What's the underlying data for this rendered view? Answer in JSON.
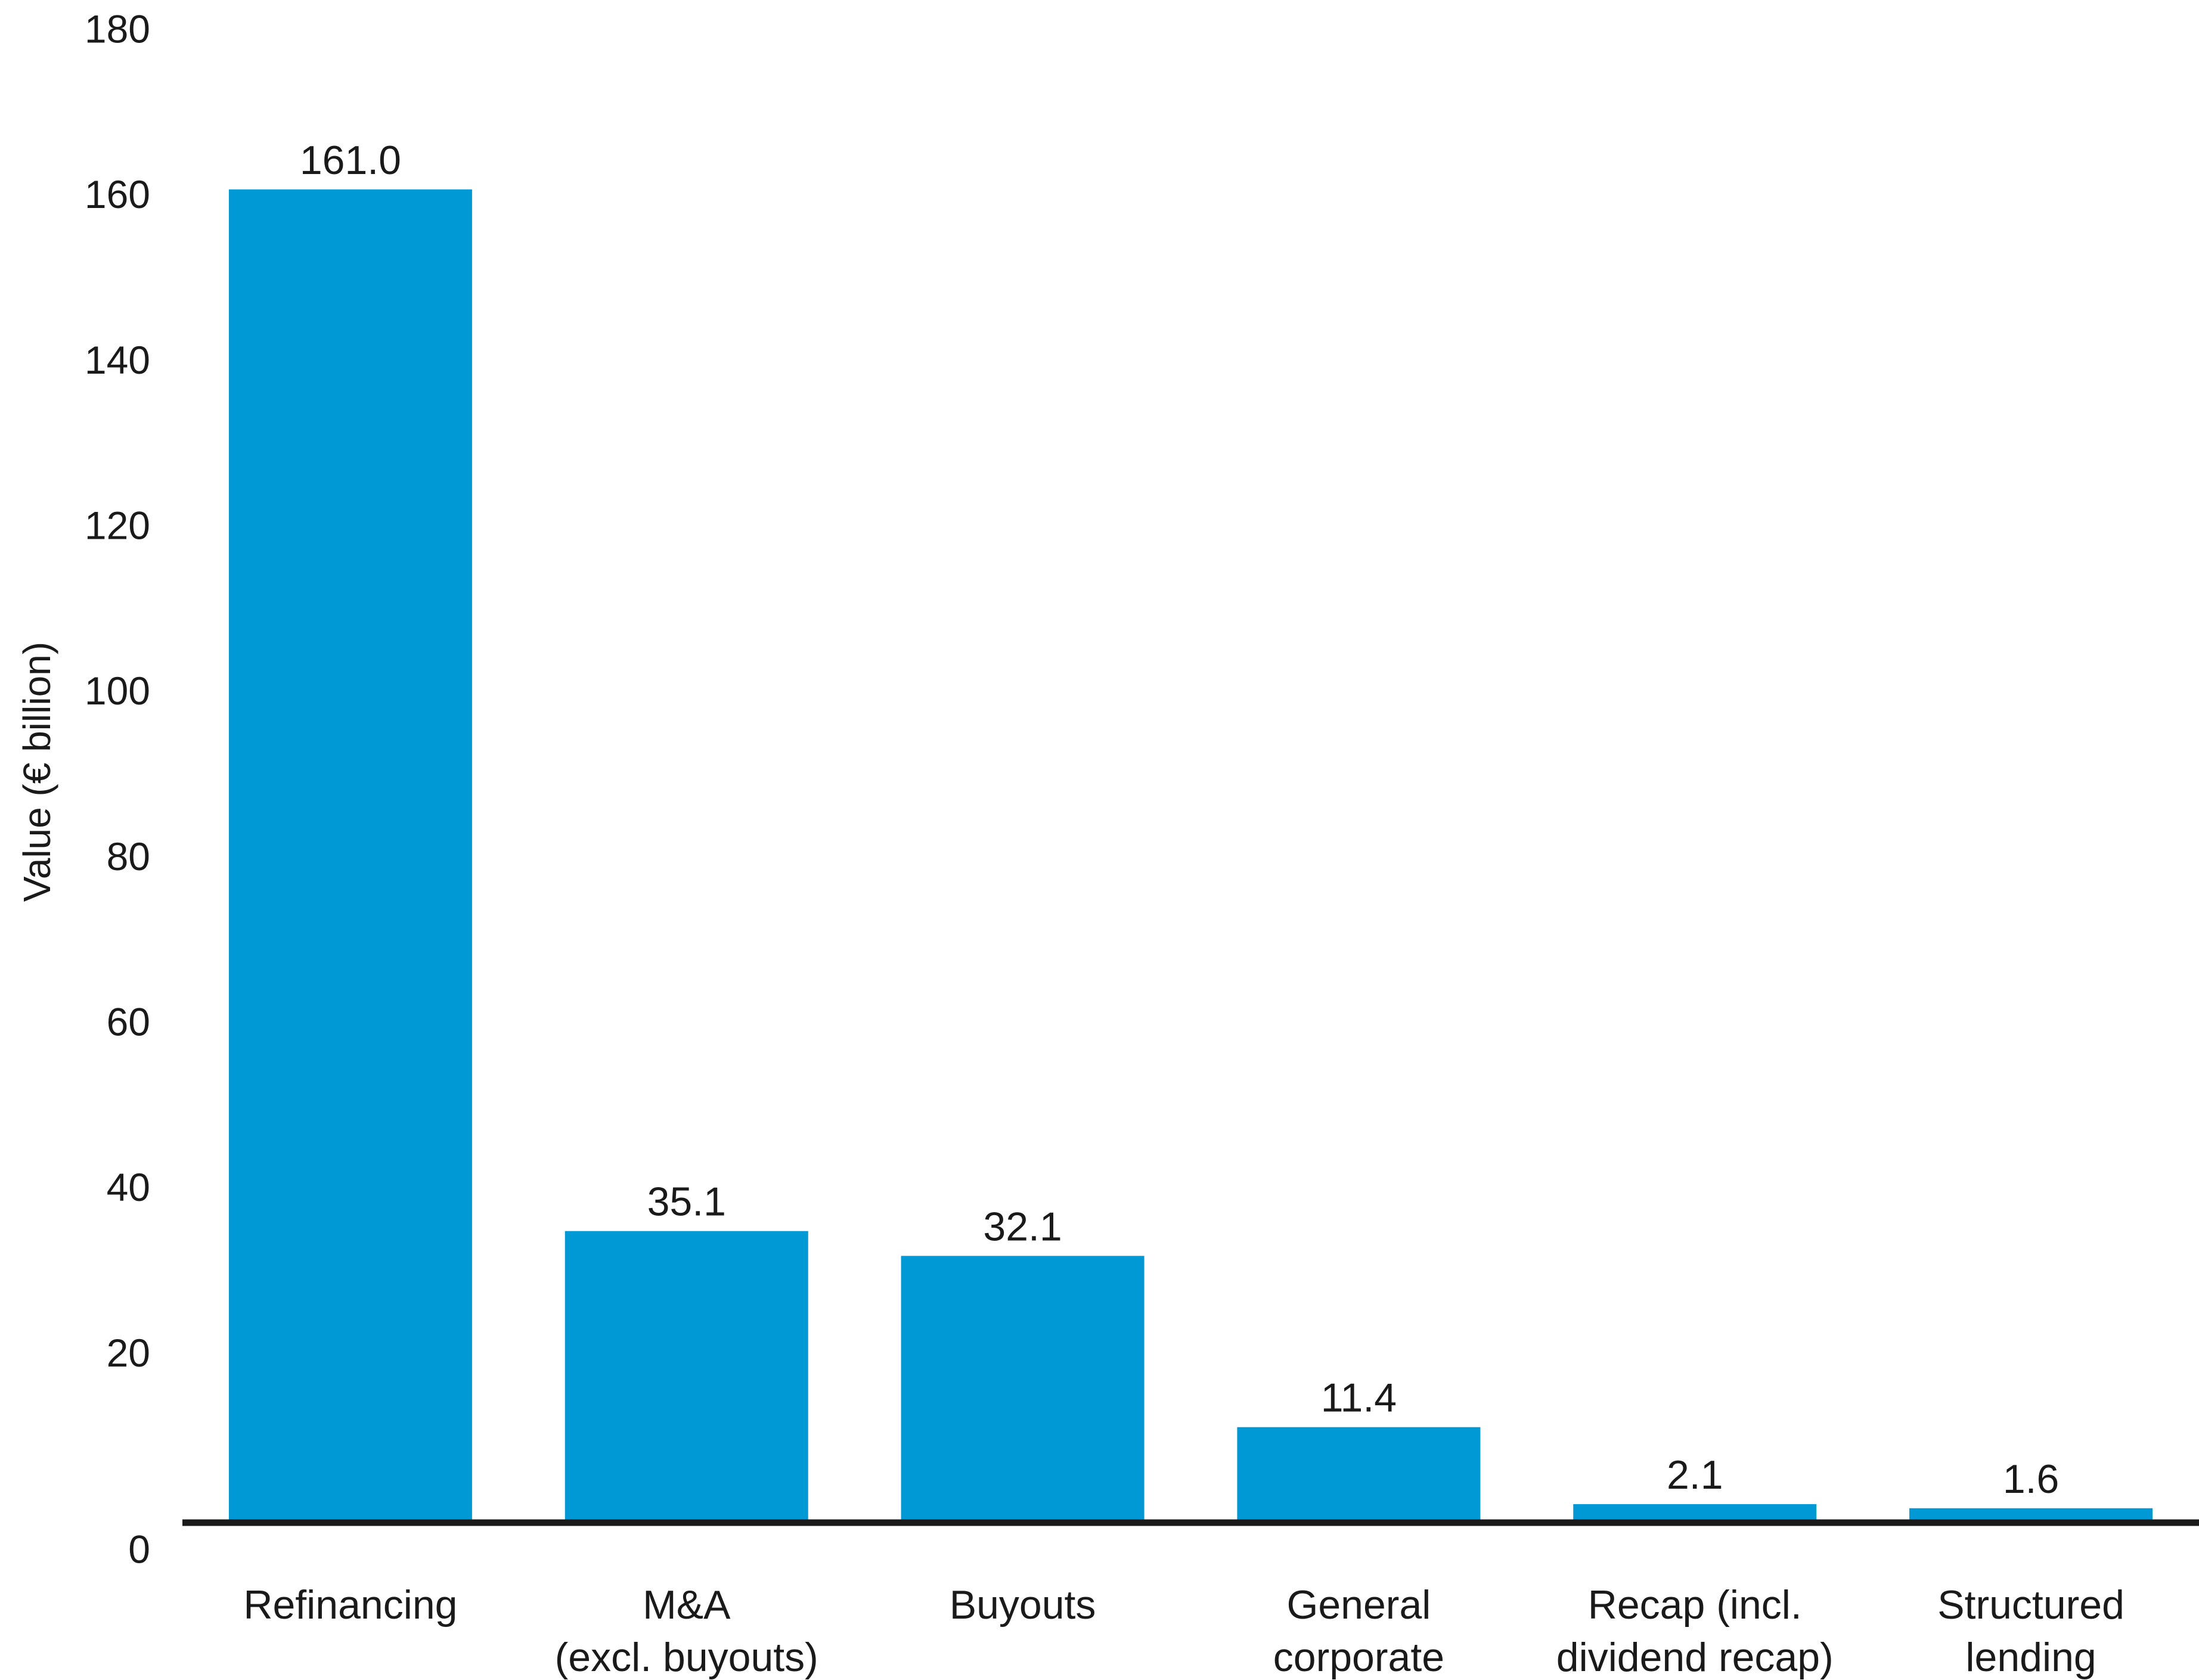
{
  "chart_data": {
    "type": "bar",
    "title": "",
    "xlabel": "",
    "ylabel": "Value (€ billion)",
    "ylim": [
      0,
      180
    ],
    "yticks": [
      0,
      20,
      40,
      60,
      80,
      100,
      120,
      140,
      160,
      180
    ],
    "grid": false,
    "bar_color": "#0099d6",
    "axis_color": "#1a1a1a",
    "categories": [
      [
        "Refinancing"
      ],
      [
        "M&A",
        "(excl. buyouts)"
      ],
      [
        "Buyouts"
      ],
      [
        "General",
        "corporate"
      ],
      [
        "Recap (incl.",
        "dividend recap)"
      ],
      [
        "Structured",
        "lending"
      ]
    ],
    "values": [
      161.0,
      35.1,
      32.1,
      11.4,
      2.1,
      1.6
    ],
    "data_labels": [
      "161.0",
      "35.1",
      "32.1",
      "11.4",
      "2.1",
      "1.6"
    ]
  }
}
